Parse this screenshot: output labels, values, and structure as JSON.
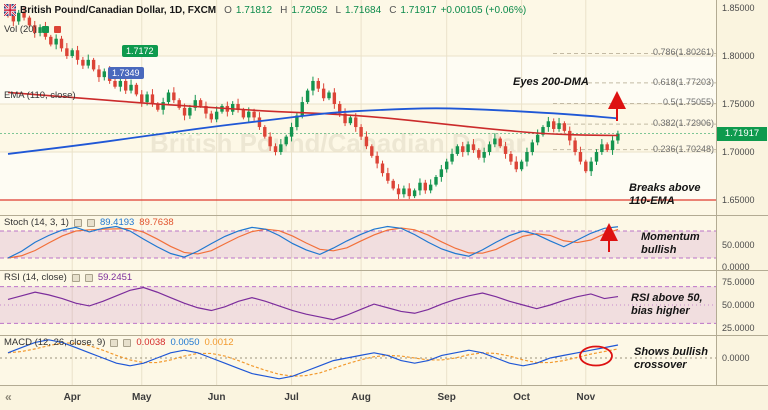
{
  "header": {
    "symbol_title": "British Pound/Canadian Dollar, 1D, FXCM",
    "ohlc": {
      "o_label": "O",
      "o_value": "1.71812",
      "h_label": "H",
      "h_value": "1.72052",
      "l_label": "L",
      "l_value": "1.71684",
      "c_label": "C",
      "c_value": "1.71917",
      "change": "+0.00105 (+0.06%)"
    }
  },
  "legend": {
    "vol_label": "Vol (20)",
    "badge1": "1.7172",
    "badge2": "1.7349",
    "ema_label": "EMA (110, close)"
  },
  "indicator_legends": {
    "stoch_label": "Stoch (14, 3, 1)",
    "stoch_k": "89.4193",
    "stoch_d": "89.7638",
    "rsi_label": "RSI (14, close)",
    "rsi_value": "59.2451",
    "macd_label": "MACD (12, 26, close, 9)",
    "macd_v1": "0.0038",
    "macd_v2": "0.0050",
    "macd_v3": "0.0012"
  },
  "annotations": {
    "eyes_200dma": "Eyes 200-DMA",
    "breaks_110ema": "Breaks above\n110-EMA",
    "momentum": "Momentum\nbullish",
    "rsi_bias": "RSI above 50,\nbias higher",
    "macd_cross": "Shows bullish\ncrossover"
  },
  "watermark": "British Pound/Canadian Dollar",
  "price_badge": "1.71917",
  "icons": {
    "nav_arrows": "«"
  },
  "colors": {
    "up": "#14944f",
    "down": "#dc4437",
    "ma200": "#1f57d6",
    "ema110": "#cb2b2b",
    "support": "#df3b2f",
    "stoch_k": "#1f78d1",
    "stoch_d": "#f2703a",
    "rsi": "#7c2d9c",
    "macd_line": "#1f57d6",
    "macd_signal": "#f29a2e",
    "badge_green": "#0e9a4e",
    "badge_blue": "#4a69bd",
    "annotation_red": "#dd1111",
    "fib_text": "#6f6f6f"
  },
  "chart_data": {
    "type": "candlestick",
    "symbol": "GBP/CAD",
    "timeframe": "1D",
    "exchange": "FXCM",
    "last_price": 1.71917,
    "price_scale": {
      "min": 1.65,
      "max": 1.85,
      "labels": [
        {
          "text": "1.85000",
          "price": 1.85
        },
        {
          "text": "1.80000",
          "price": 1.8
        },
        {
          "text": "1.75000",
          "price": 1.75
        },
        {
          "text": "1.70000",
          "price": 1.7
        },
        {
          "text": "1.65000",
          "price": 1.65
        }
      ]
    },
    "months": [
      {
        "label": "Apr",
        "i": 12
      },
      {
        "label": "May",
        "i": 25
      },
      {
        "label": "Jun",
        "i": 39
      },
      {
        "label": "Jul",
        "i": 53
      },
      {
        "label": "Aug",
        "i": 66
      },
      {
        "label": "Sep",
        "i": 82
      },
      {
        "label": "Oct",
        "i": 96
      },
      {
        "label": "Nov",
        "i": 108
      }
    ],
    "candles_close": [
      1.842,
      1.836,
      1.845,
      1.84,
      1.832,
      1.824,
      1.83,
      1.82,
      1.812,
      1.818,
      1.808,
      1.8,
      1.806,
      1.796,
      1.79,
      1.796,
      1.786,
      1.778,
      1.784,
      1.774,
      1.768,
      1.774,
      1.764,
      1.77,
      1.76,
      1.752,
      1.76,
      1.75,
      1.744,
      1.752,
      1.762,
      1.754,
      1.746,
      1.738,
      1.746,
      1.754,
      1.748,
      1.74,
      1.734,
      1.742,
      1.748,
      1.742,
      1.75,
      1.744,
      1.736,
      1.742,
      1.736,
      1.726,
      1.716,
      1.706,
      1.7,
      1.708,
      1.716,
      1.726,
      1.738,
      1.752,
      1.764,
      1.774,
      1.766,
      1.756,
      1.762,
      1.75,
      1.74,
      1.73,
      1.736,
      1.726,
      1.716,
      1.706,
      1.696,
      1.688,
      1.678,
      1.67,
      1.662,
      1.656,
      1.662,
      1.654,
      1.66,
      1.668,
      1.66,
      1.666,
      1.674,
      1.682,
      1.69,
      1.698,
      1.706,
      1.7,
      1.708,
      1.702,
      1.694,
      1.7,
      1.708,
      1.714,
      1.706,
      1.698,
      1.69,
      1.682,
      1.69,
      1.7,
      1.71,
      1.718,
      1.726,
      1.732,
      1.724,
      1.73,
      1.722,
      1.712,
      1.7,
      1.69,
      1.68,
      1.69,
      1.7,
      1.708,
      1.702,
      1.712,
      1.7192
    ],
    "overlays": {
      "ma200_points": [
        [
          0,
          1.698
        ],
        [
          12,
          1.706
        ],
        [
          25,
          1.716
        ],
        [
          39,
          1.727
        ],
        [
          50,
          1.734
        ],
        [
          60,
          1.741
        ],
        [
          70,
          1.744
        ],
        [
          80,
          1.746
        ],
        [
          90,
          1.744
        ],
        [
          100,
          1.741
        ],
        [
          108,
          1.738
        ],
        [
          114,
          1.735
        ]
      ],
      "ema110_points": [
        [
          0,
          1.762
        ],
        [
          12,
          1.757
        ],
        [
          25,
          1.751
        ],
        [
          39,
          1.746
        ],
        [
          50,
          1.742
        ],
        [
          60,
          1.74
        ],
        [
          70,
          1.736
        ],
        [
          80,
          1.73
        ],
        [
          90,
          1.724
        ],
        [
          100,
          1.719
        ],
        [
          108,
          1.7175
        ],
        [
          114,
          1.7172
        ]
      ],
      "ma200_value": 1.7349,
      "ema110_value": 1.7172,
      "support_level": 1.65
    },
    "fib_levels": [
      {
        "label": "0.786(1.80261)",
        "price": 1.80261
      },
      {
        "label": "0.618(1.77203)",
        "price": 1.77203
      },
      {
        "label": "0.5(1.75055)",
        "price": 1.75055
      },
      {
        "label": "0.382(1.72906)",
        "price": 1.72906
      },
      {
        "label": "0.236(1.70248)",
        "price": 1.70248
      }
    ],
    "stoch": {
      "band": [
        20,
        80
      ],
      "k": [
        20,
        35,
        55,
        70,
        82,
        88,
        78,
        86,
        90,
        80,
        62,
        45,
        30,
        22,
        35,
        52,
        68,
        80,
        88,
        84,
        70,
        52,
        38,
        28,
        42,
        58,
        72,
        84,
        90,
        86,
        72,
        55,
        40,
        30,
        24,
        38,
        55,
        70,
        80,
        72,
        58,
        45,
        60,
        75,
        86,
        89.4
      ],
      "scale_labels": [
        {
          "text": "50.0000",
          "v": 50
        },
        {
          "text": "0.0000",
          "v": 0
        }
      ]
    },
    "rsi": {
      "band": [
        30,
        70
      ],
      "values": [
        56,
        60,
        64,
        61,
        57,
        52,
        49,
        54,
        60,
        66,
        69,
        64,
        58,
        52,
        47,
        44,
        48,
        54,
        58,
        54,
        49,
        44,
        40,
        37,
        34,
        39,
        45,
        51,
        47,
        43,
        41,
        45,
        51,
        56,
        60,
        63,
        59,
        54,
        50,
        46,
        50,
        55,
        59,
        62,
        57,
        59.2
      ],
      "scale_labels": [
        {
          "text": "75.0000",
          "v": 75
        },
        {
          "text": "50.0000",
          "v": 50
        },
        {
          "text": "25.0000",
          "v": 25
        }
      ]
    },
    "macd": {
      "macd": [
        0.002,
        0.004,
        0.006,
        0.007,
        0.006,
        0.004,
        0.002,
        0.0,
        -0.002,
        -0.003,
        -0.002,
        0.0,
        0.002,
        0.003,
        0.002,
        0.0,
        -0.002,
        -0.004,
        -0.006,
        -0.007,
        -0.008,
        -0.007,
        -0.005,
        -0.003,
        -0.001,
        0.0,
        0.001,
        0.002,
        0.001,
        -0.001,
        -0.002,
        -0.001,
        0.001,
        0.002,
        0.003,
        0.002,
        0.0,
        -0.002,
        -0.003,
        -0.002,
        0.0,
        0.001,
        0.002,
        0.003,
        0.004,
        0.005
      ],
      "scale_labels": [
        {
          "text": "0.0000",
          "v": 0
        }
      ]
    }
  }
}
